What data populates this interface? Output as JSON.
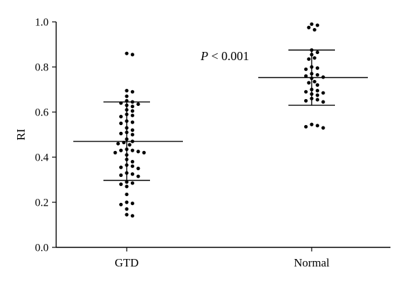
{
  "chart_data": {
    "type": "scatter",
    "ylabel": "RI",
    "xlabel": "",
    "ylim": [
      0,
      1.0
    ],
    "yticks": [
      0.0,
      0.2,
      0.4,
      0.6,
      0.8,
      1.0
    ],
    "ytick_labels": [
      "0.0",
      "0.2",
      "0.4",
      "0.6",
      "0.8",
      "1.0"
    ],
    "categories": [
      "GTD",
      "Normal"
    ],
    "annotation": {
      "p_symbol": "P",
      "p_text": " < 0.001"
    },
    "grid": false,
    "series": [
      {
        "category": "GTD",
        "mean": 0.47,
        "sd_upper": 0.645,
        "sd_lower": 0.297,
        "values": [
          0.86,
          0.855,
          0.695,
          0.69,
          0.67,
          0.65,
          0.645,
          0.64,
          0.635,
          0.63,
          0.625,
          0.61,
          0.605,
          0.59,
          0.585,
          0.58,
          0.56,
          0.555,
          0.55,
          0.53,
          0.52,
          0.51,
          0.505,
          0.5,
          0.48,
          0.47,
          0.465,
          0.46,
          0.455,
          0.435,
          0.43,
          0.43,
          0.425,
          0.42,
          0.42,
          0.41,
          0.39,
          0.38,
          0.365,
          0.36,
          0.355,
          0.35,
          0.33,
          0.325,
          0.32,
          0.315,
          0.29,
          0.285,
          0.28,
          0.27,
          0.235,
          0.2,
          0.195,
          0.19,
          0.17,
          0.145,
          0.14
        ]
      },
      {
        "category": "Normal",
        "mean": 0.753,
        "sd_upper": 0.875,
        "sd_lower": 0.63,
        "values": [
          0.99,
          0.985,
          0.975,
          0.965,
          0.875,
          0.865,
          0.855,
          0.84,
          0.835,
          0.8,
          0.795,
          0.79,
          0.77,
          0.765,
          0.76,
          0.755,
          0.75,
          0.735,
          0.73,
          0.72,
          0.7,
          0.695,
          0.69,
          0.685,
          0.68,
          0.675,
          0.66,
          0.655,
          0.65,
          0.645,
          0.545,
          0.54,
          0.535,
          0.53
        ]
      }
    ]
  }
}
